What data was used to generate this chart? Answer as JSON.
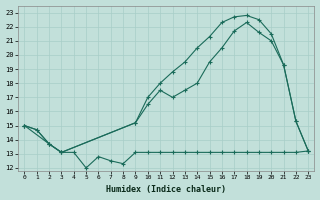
{
  "xlabel": "Humidex (Indice chaleur)",
  "background_color": "#c2e0da",
  "grid_color": "#a8cec8",
  "line_color": "#1a6b5a",
  "xlim": [
    -0.5,
    23.5
  ],
  "ylim": [
    11.8,
    23.5
  ],
  "yticks": [
    12,
    13,
    14,
    15,
    16,
    17,
    18,
    19,
    20,
    21,
    22,
    23
  ],
  "xticks": [
    0,
    1,
    2,
    3,
    4,
    5,
    6,
    7,
    8,
    9,
    10,
    11,
    12,
    13,
    14,
    15,
    16,
    17,
    18,
    19,
    20,
    21,
    22,
    23
  ],
  "line_min_x": [
    0,
    1,
    2,
    3,
    4,
    5,
    6,
    7,
    8,
    9,
    10,
    11,
    12,
    13,
    14,
    15,
    16,
    17,
    18,
    19,
    20,
    21,
    22,
    23
  ],
  "line_min_y": [
    15.0,
    14.7,
    13.7,
    13.1,
    13.1,
    12.0,
    12.8,
    12.5,
    12.3,
    13.1,
    13.1,
    13.1,
    13.1,
    13.1,
    13.1,
    13.1,
    13.1,
    13.1,
    13.1,
    13.1,
    13.1,
    13.1,
    13.1,
    13.2
  ],
  "line_upper_x": [
    0,
    1,
    2,
    3,
    9,
    10,
    11,
    12,
    13,
    14,
    15,
    16,
    17,
    18,
    19,
    20,
    21,
    22,
    23
  ],
  "line_upper_y": [
    15.0,
    14.7,
    13.7,
    13.1,
    15.2,
    17.0,
    18.0,
    18.8,
    19.5,
    20.5,
    21.3,
    22.3,
    22.7,
    22.8,
    22.5,
    21.5,
    19.3,
    15.3,
    13.2
  ],
  "line_mid_x": [
    0,
    2,
    3,
    9,
    10,
    11,
    12,
    13,
    14,
    15,
    16,
    17,
    18,
    19,
    20,
    21,
    22,
    23
  ],
  "line_mid_y": [
    15.0,
    13.7,
    13.1,
    15.2,
    16.5,
    17.5,
    17.0,
    17.5,
    18.0,
    19.5,
    20.5,
    21.7,
    22.3,
    21.6,
    21.0,
    19.3,
    15.3,
    13.2
  ]
}
